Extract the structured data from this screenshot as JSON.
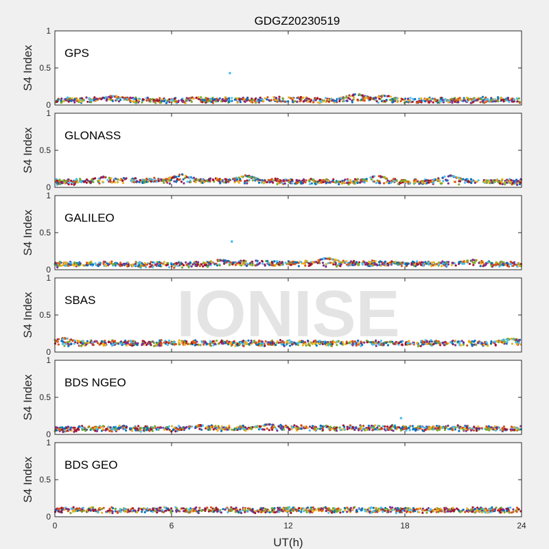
{
  "title": "GDGZ20230519",
  "watermark": "IONISE",
  "colors": {
    "figure_bg": "#f0f0f0",
    "axes_bg": "#ffffff",
    "axis": "#262626",
    "watermark": "#e4e4e4",
    "series": [
      "#0072bd",
      "#d95319",
      "#edb120",
      "#7e2f8e",
      "#77ac30",
      "#4dbeee",
      "#a2142f"
    ]
  },
  "chart_data": {
    "type": "scatter",
    "title": "GDGZ20230519",
    "xlabel": "UT(h)",
    "ylabel": "S4 Index",
    "xlim": [
      0,
      24
    ],
    "ylim": [
      0,
      1
    ],
    "x_ticks": [
      "0",
      "6",
      "12",
      "18",
      "24"
    ],
    "x_tick_values": [
      0,
      6,
      12,
      18,
      24
    ],
    "y_ticks": [
      "0",
      "0.5",
      "1"
    ],
    "y_tick_values": [
      0,
      0.5,
      1
    ],
    "grid": false,
    "panels": [
      {
        "name": "GPS",
        "baseline": [
          0.06,
          0.07,
          0.065,
          0.06,
          0.07,
          0.065,
          0.07,
          0.065,
          0.07,
          0.06,
          0.065,
          0.07,
          0.065
        ],
        "bumps": [
          {
            "x": 15.5,
            "y": 0.15
          },
          {
            "x": 17.0,
            "y": 0.13
          },
          {
            "x": 3.0,
            "y": 0.12
          }
        ],
        "outliers": [
          {
            "x": 9.0,
            "y": 0.43
          }
        ]
      },
      {
        "name": "GLONASS",
        "baseline": [
          0.07,
          0.08,
          0.09,
          0.09,
          0.09,
          0.08,
          0.08,
          0.08,
          0.075,
          0.075,
          0.08,
          0.08,
          0.07
        ],
        "bumps": [
          {
            "x": 2.5,
            "y": 0.14
          },
          {
            "x": 6.5,
            "y": 0.17
          },
          {
            "x": 9.8,
            "y": 0.16
          },
          {
            "x": 16.6,
            "y": 0.16
          },
          {
            "x": 20.3,
            "y": 0.16
          }
        ],
        "outliers": []
      },
      {
        "name": "GALILEO",
        "baseline": [
          0.07,
          0.075,
          0.07,
          0.065,
          0.075,
          0.09,
          0.085,
          0.08,
          0.085,
          0.08,
          0.08,
          0.08,
          0.075
        ],
        "bumps": [
          {
            "x": 8.5,
            "y": 0.13
          },
          {
            "x": 14.0,
            "y": 0.16
          },
          {
            "x": 21.5,
            "y": 0.13
          }
        ],
        "outliers": [
          {
            "x": 9.1,
            "y": 0.38
          }
        ]
      },
      {
        "name": "SBAS",
        "baseline": [
          0.12,
          0.12,
          0.12,
          0.12,
          0.12,
          0.12,
          0.12,
          0.12,
          0.12,
          0.12,
          0.12,
          0.12,
          0.13
        ],
        "bumps": [
          {
            "x": 0.5,
            "y": 0.19
          },
          {
            "x": 23.5,
            "y": 0.18
          }
        ],
        "outliers": []
      },
      {
        "name": "BDS NGEO",
        "baseline": [
          0.07,
          0.08,
          0.08,
          0.075,
          0.08,
          0.085,
          0.09,
          0.09,
          0.085,
          0.085,
          0.085,
          0.08,
          0.07
        ],
        "bumps": [
          {
            "x": 7.5,
            "y": 0.12
          },
          {
            "x": 11.0,
            "y": 0.13
          }
        ],
        "outliers": [
          {
            "x": 17.8,
            "y": 0.22
          }
        ]
      },
      {
        "name": "BDS GEO",
        "baseline": [
          0.09,
          0.09,
          0.09,
          0.09,
          0.09,
          0.09,
          0.09,
          0.09,
          0.09,
          0.09,
          0.09,
          0.09,
          0.09
        ],
        "bumps": [],
        "outliers": []
      }
    ]
  }
}
